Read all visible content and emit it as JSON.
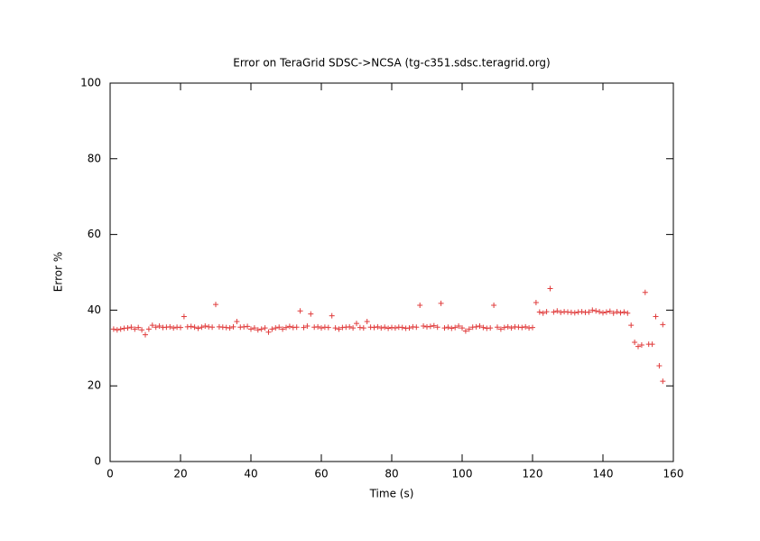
{
  "chart_data": {
    "type": "scatter",
    "title": "Error on TeraGrid SDSC->NCSA (tg-c351.sdsc.teragrid.org)",
    "x_label": "Time (s)",
    "y_label": "Error %",
    "xlim": [
      0,
      160
    ],
    "xticks": [
      0,
      20,
      40,
      60,
      80,
      100,
      120,
      140,
      160
    ],
    "ylim": [
      0,
      100
    ],
    "yticks": [
      0,
      20,
      40,
      60,
      80,
      100
    ],
    "series": [
      {
        "color": "#e03c3c",
        "x": [
          1,
          2,
          3,
          4,
          5,
          6,
          7,
          8,
          9,
          10,
          11,
          12,
          13,
          14,
          15,
          16,
          17,
          18,
          19,
          20,
          21,
          22,
          23,
          24,
          25,
          26,
          27,
          28,
          29,
          30,
          31,
          32,
          33,
          34,
          35,
          36,
          37,
          38,
          39,
          40,
          41,
          42,
          43,
          44,
          45,
          46,
          47,
          48,
          49,
          50,
          51,
          52,
          53,
          54,
          55,
          56,
          57,
          58,
          59,
          60,
          61,
          62,
          63,
          64,
          65,
          66,
          67,
          68,
          69,
          70,
          71,
          72,
          73,
          74,
          75,
          76,
          77,
          78,
          79,
          80,
          81,
          82,
          83,
          84,
          85,
          86,
          87,
          88,
          89,
          90,
          91,
          92,
          93,
          94,
          95,
          96,
          97,
          98,
          99,
          100,
          101,
          102,
          103,
          104,
          105,
          106,
          107,
          108,
          109,
          110,
          111,
          112,
          113,
          114,
          115,
          116,
          117,
          118,
          119,
          120,
          121,
          122,
          123,
          124,
          125,
          126,
          127,
          128,
          129,
          130,
          131,
          132,
          133,
          134,
          135,
          136,
          137,
          138,
          139,
          140,
          141,
          142,
          143,
          144,
          145,
          146,
          147,
          148,
          149,
          150,
          151,
          152,
          153,
          154,
          155,
          156,
          157,
          157
        ],
        "values": [
          35,
          34.8,
          35,
          35.2,
          35.3,
          35.5,
          35,
          35.4,
          34.8,
          33.5,
          35,
          36,
          35.5,
          35.8,
          35.4,
          35.5,
          35.6,
          35.3,
          35.5,
          35.4,
          38.3,
          35.6,
          35.7,
          35.5,
          35.2,
          35.5,
          35.8,
          35.6,
          35.5,
          41.5,
          35.6,
          35.5,
          35.4,
          35.3,
          35.6,
          37,
          35.5,
          35.6,
          35.7,
          35,
          35.3,
          34.8,
          35,
          35.3,
          34.2,
          35,
          35.3,
          35.5,
          35,
          35.4,
          35.7,
          35.4,
          35.5,
          39.8,
          35.4,
          35.8,
          39,
          35.5,
          35.6,
          35.3,
          35.5,
          35.4,
          38.5,
          35.3,
          35,
          35.4,
          35.5,
          35.6,
          35.3,
          36.5,
          35.4,
          35.3,
          37,
          35.5,
          35.4,
          35.6,
          35.3,
          35.5,
          35.2,
          35.4,
          35.3,
          35.5,
          35.4,
          35.2,
          35.3,
          35.6,
          35.5,
          41.3,
          35.8,
          35.6,
          35.7,
          35.9,
          35.5,
          41.8,
          35.3,
          35.5,
          35.2,
          35.4,
          35.8,
          35.3,
          34.5,
          35,
          35.5,
          35.6,
          35.8,
          35.4,
          35.2,
          35.3,
          41.3,
          35.5,
          35,
          35.4,
          35.6,
          35.3,
          35.6,
          35.5,
          35.4,
          35.6,
          35.3,
          35.4,
          42,
          39.5,
          39.2,
          39.6,
          45.7,
          39.5,
          39.8,
          39.4,
          39.6,
          39.5,
          39.4,
          39.3,
          39.5,
          39.6,
          39.4,
          39.5,
          40,
          39.8,
          39.6,
          39.3,
          39.5,
          39.7,
          39.2,
          39.6,
          39.3,
          39.5,
          39.2,
          36,
          31.5,
          30.4,
          30.8,
          44.7,
          31,
          31,
          38.3,
          25.3,
          21.2,
          36.2
        ]
      }
    ]
  }
}
